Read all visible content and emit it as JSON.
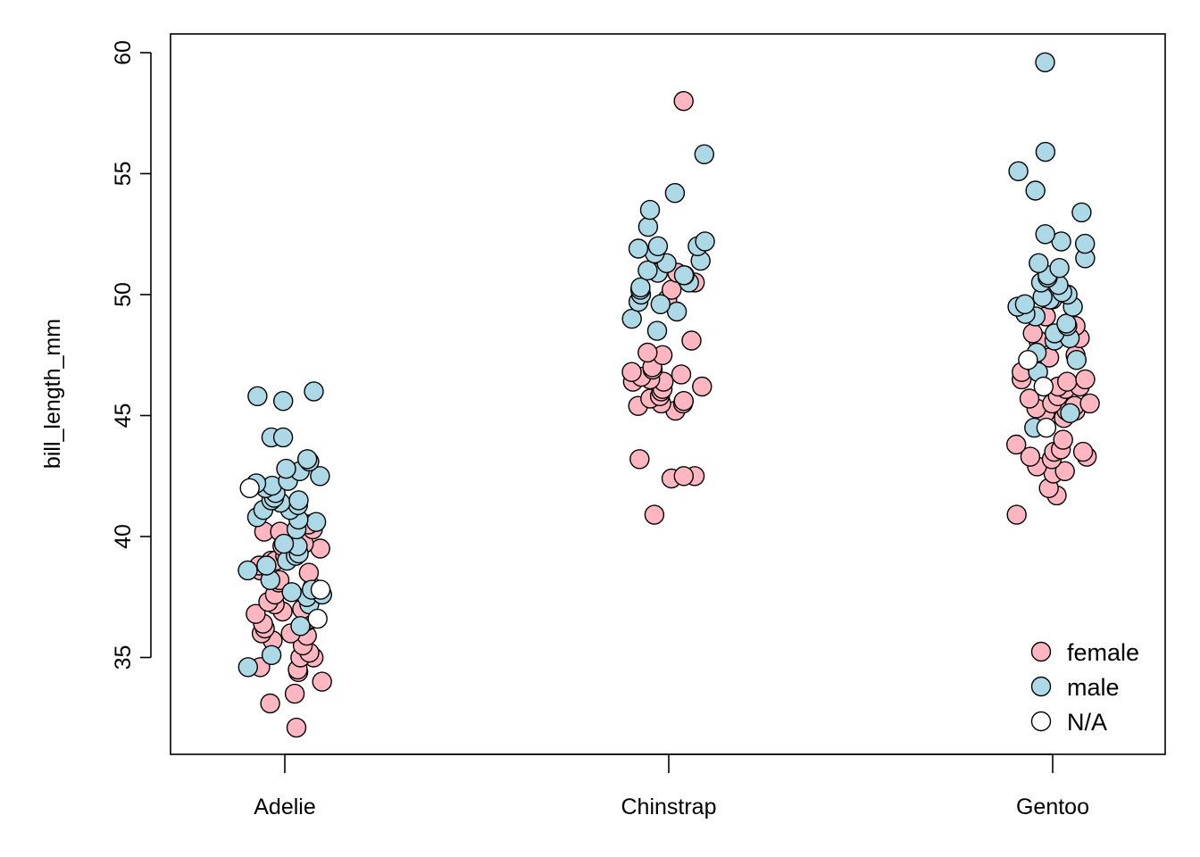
{
  "chart_data": {
    "type": "scatter",
    "title": "",
    "xlabel": "",
    "ylabel": "bill_length_mm",
    "categories": [
      "Adelie",
      "Chinstrap",
      "Gentoo"
    ],
    "yticks": [
      35,
      40,
      45,
      50,
      55,
      60
    ],
    "ylim": [
      31,
      60.6
    ],
    "grid": false,
    "legend": {
      "position": "bottom-right",
      "entries": [
        {
          "label": "female",
          "color": "#FFB6C1"
        },
        {
          "label": "male",
          "color": "#ADD8E6"
        },
        {
          "label": "N/A",
          "color": "#FFFFFF"
        }
      ]
    },
    "series": [
      {
        "name": "female",
        "color": "#FFB6C1",
        "points": [
          {
            "category": "Adelie",
            "values": [
              32.1,
              33.1,
              33.5,
              34.0,
              34.4,
              34.5,
              34.6,
              35.0,
              35.0,
              35.2,
              35.5,
              35.7,
              35.9,
              36.0,
              36.0,
              36.2,
              36.4,
              36.5,
              36.6,
              36.7,
              36.8,
              36.9,
              37.0,
              37.2,
              37.3,
              37.6,
              37.8,
              37.9,
              38.1,
              38.2,
              38.5,
              38.6,
              38.8,
              39.0,
              39.0,
              39.2,
              39.5,
              39.6,
              39.7,
              40.2,
              40.2,
              40.3,
              40.5
            ]
          },
          {
            "category": "Chinstrap",
            "values": [
              40.9,
              42.4,
              42.5,
              42.5,
              43.2,
              45.2,
              45.4,
              45.5,
              45.5,
              45.6,
              45.7,
              45.8,
              46.0,
              46.1,
              46.2,
              46.4,
              46.4,
              46.5,
              46.6,
              46.7,
              46.8,
              46.9,
              47.0,
              47.5,
              47.6,
              48.1,
              49.8,
              50.2,
              50.5,
              50.9,
              58.0
            ]
          },
          {
            "category": "Gentoo",
            "values": [
              40.9,
              41.7,
              42.0,
              42.6,
              42.7,
              42.9,
              43.2,
              43.3,
              43.3,
              43.5,
              43.5,
              43.6,
              43.8,
              44.0,
              44.9,
              45.1,
              45.2,
              45.2,
              45.3,
              45.4,
              45.5,
              45.5,
              45.7,
              45.8,
              46.1,
              46.2,
              46.2,
              46.4,
              46.5,
              46.5,
              46.8,
              47.2,
              47.4,
              47.5,
              48.1,
              48.2,
              48.4,
              48.7,
              49.1,
              50.5
            ]
          }
        ]
      },
      {
        "name": "male",
        "color": "#ADD8E6",
        "points": [
          {
            "category": "Adelie",
            "values": [
              34.6,
              35.1,
              36.3,
              37.2,
              37.5,
              37.6,
              37.7,
              37.8,
              38.2,
              38.6,
              38.8,
              39.0,
              39.2,
              39.3,
              39.6,
              39.7,
              40.3,
              40.6,
              40.7,
              40.8,
              41.1,
              41.1,
              41.3,
              41.4,
              41.5,
              41.5,
              41.6,
              41.8,
              42.0,
              42.1,
              42.2,
              42.3,
              42.5,
              42.7,
              42.8,
              43.1,
              43.2,
              44.1,
              44.1,
              45.6,
              45.8,
              46.0
            ]
          },
          {
            "category": "Chinstrap",
            "values": [
              48.5,
              49.0,
              49.3,
              49.6,
              49.7,
              50.0,
              50.2,
              50.3,
              50.5,
              50.8,
              50.8,
              50.9,
              51.0,
              51.3,
              51.4,
              51.7,
              51.9,
              52.0,
              52.0,
              52.2,
              52.8,
              53.5,
              54.2,
              55.8
            ]
          },
          {
            "category": "Gentoo",
            "values": [
              44.5,
              45.1,
              46.8,
              47.3,
              47.6,
              48.1,
              48.2,
              48.4,
              48.7,
              48.8,
              49.1,
              49.2,
              49.5,
              49.5,
              49.6,
              49.8,
              49.8,
              49.9,
              50.0,
              50.1,
              50.4,
              50.5,
              50.7,
              50.8,
              51.1,
              51.3,
              51.5,
              52.1,
              52.2,
              52.5,
              53.4,
              54.3,
              55.1,
              55.9,
              59.6
            ]
          }
        ]
      },
      {
        "name": "N/A",
        "color": "#FFFFFF",
        "points": [
          {
            "category": "Adelie",
            "values": [
              36.6,
              37.8,
              42.0
            ]
          },
          {
            "category": "Gentoo",
            "values": [
              44.5,
              46.2,
              47.3
            ]
          }
        ]
      }
    ]
  }
}
